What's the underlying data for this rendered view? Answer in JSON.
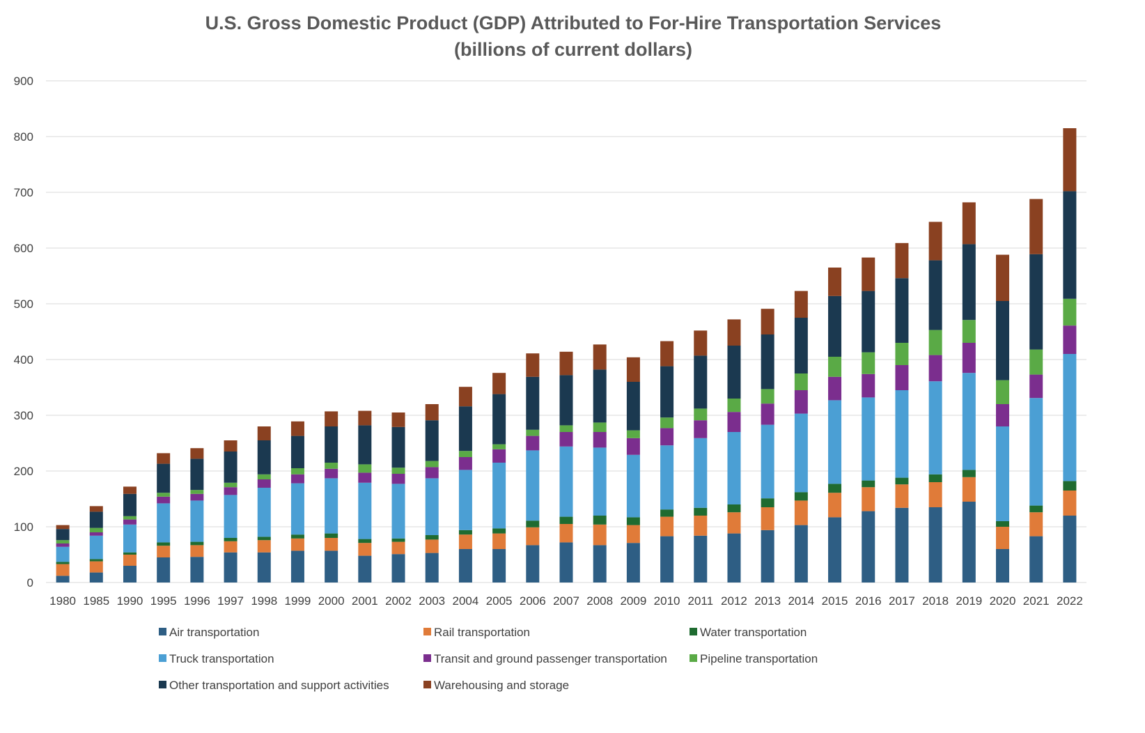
{
  "chart_data": {
    "type": "bar",
    "stacked": true,
    "title": "U.S. Gross Domestic Product (GDP) Attributed to For-Hire Transportation Services",
    "subtitle": "(billions of current dollars)",
    "xlabel": "",
    "ylabel": "",
    "ylim": [
      0,
      900
    ],
    "yticks": [
      0,
      100,
      200,
      300,
      400,
      500,
      600,
      700,
      800,
      900
    ],
    "grid": true,
    "legend_position": "bottom",
    "categories": [
      "1980",
      "1985",
      "1990",
      "1995",
      "1996",
      "1997",
      "1998",
      "1999",
      "2000",
      "2001",
      "2002",
      "2003",
      "2004",
      "2005",
      "2006",
      "2007",
      "2008",
      "2009",
      "2010",
      "2011",
      "2012",
      "2013",
      "2014",
      "2015",
      "2016",
      "2017",
      "2018",
      "2019",
      "2020",
      "2021",
      "2022"
    ],
    "series": [
      {
        "name": "Air transportation",
        "color": "#2e5e84",
        "values": [
          12,
          18,
          30,
          45,
          46,
          54,
          54,
          57,
          57,
          48,
          51,
          53,
          60,
          60,
          67,
          72,
          67,
          71,
          83,
          84,
          88,
          94,
          103,
          117,
          128,
          134,
          135,
          145,
          60,
          83,
          120
        ]
      },
      {
        "name": "Rail transportation",
        "color": "#e07b39",
        "values": [
          21,
          20,
          20,
          21,
          21,
          20,
          22,
          22,
          23,
          23,
          22,
          24,
          26,
          28,
          32,
          33,
          37,
          32,
          35,
          36,
          38,
          41,
          44,
          44,
          43,
          42,
          45,
          44,
          40,
          43,
          45
        ]
      },
      {
        "name": "Water transportation",
        "color": "#1f6b30",
        "values": [
          4,
          4,
          4,
          6,
          6,
          6,
          6,
          7,
          8,
          7,
          6,
          8,
          8,
          9,
          12,
          13,
          16,
          14,
          13,
          14,
          14,
          16,
          15,
          16,
          12,
          12,
          14,
          13,
          10,
          12,
          17
        ]
      },
      {
        "name": "Truck transportation",
        "color": "#4b9fd4",
        "values": [
          27,
          42,
          50,
          70,
          74,
          77,
          88,
          92,
          99,
          101,
          98,
          102,
          108,
          118,
          126,
          126,
          122,
          112,
          115,
          125,
          130,
          132,
          141,
          150,
          149,
          157,
          167,
          174,
          170,
          193,
          228
        ]
      },
      {
        "name": "Transit and ground passenger transportation",
        "color": "#7b2e8e",
        "values": [
          6,
          6,
          9,
          12,
          12,
          14,
          15,
          16,
          17,
          18,
          18,
          20,
          23,
          24,
          26,
          26,
          28,
          30,
          31,
          32,
          36,
          38,
          42,
          42,
          42,
          45,
          47,
          54,
          40,
          42,
          51
        ]
      },
      {
        "name": "Pipeline transportation",
        "color": "#5aaa46",
        "values": [
          6,
          8,
          6,
          7,
          7,
          8,
          9,
          11,
          11,
          15,
          11,
          11,
          11,
          9,
          11,
          12,
          17,
          14,
          19,
          21,
          24,
          26,
          30,
          36,
          39,
          40,
          45,
          41,
          43,
          45,
          48
        ]
      },
      {
        "name": "Other transportation and support activities",
        "color": "#1b3950",
        "values": [
          20,
          29,
          40,
          52,
          56,
          56,
          61,
          58,
          65,
          70,
          73,
          73,
          80,
          90,
          95,
          90,
          95,
          87,
          92,
          95,
          95,
          98,
          100,
          109,
          110,
          116,
          125,
          136,
          142,
          171,
          193
        ]
      },
      {
        "name": "Warehousing and storage",
        "color": "#8a4121",
        "values": [
          7,
          10,
          13,
          19,
          19,
          20,
          25,
          26,
          27,
          26,
          26,
          29,
          35,
          38,
          42,
          42,
          45,
          44,
          45,
          45,
          47,
          46,
          48,
          51,
          60,
          63,
          69,
          75,
          83,
          99,
          113
        ]
      }
    ]
  }
}
